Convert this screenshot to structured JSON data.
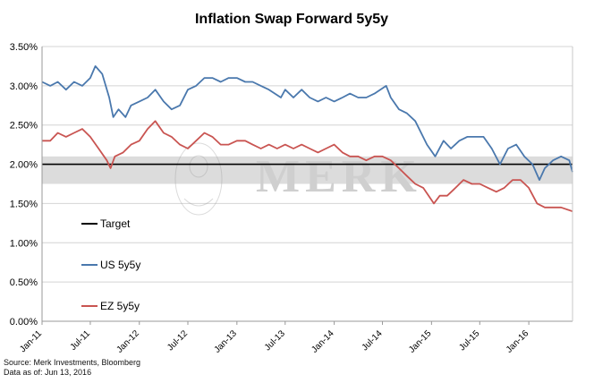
{
  "chart_data": {
    "type": "line",
    "title": "Inflation Swap Forward 5y5y",
    "xlabel": "",
    "ylabel": "",
    "ylim": [
      0,
      3.5
    ],
    "yticks": [
      "0.00%",
      "0.50%",
      "1.00%",
      "1.50%",
      "2.00%",
      "2.50%",
      "3.00%",
      "3.50%"
    ],
    "xticks": [
      "Jan-11",
      "Jul-11",
      "Jan-12",
      "Jul-12",
      "Jan-13",
      "Jul-13",
      "Jan-14",
      "Jul-14",
      "Jan-15",
      "Jul-15",
      "Jan-16"
    ],
    "x_range": [
      "2011-01-01",
      "2016-06-13"
    ],
    "grid": true,
    "legend": "lower-left inside plot",
    "watermark": "MERK",
    "target_band": [
      1.75,
      2.1
    ],
    "series": [
      {
        "name": "Target",
        "color": "#000000",
        "points": [
          [
            "2011-01-01",
            2.0
          ],
          [
            "2016-06-13",
            2.0
          ]
        ]
      },
      {
        "name": "US 5y5y",
        "color": "#4a78ad",
        "points": [
          [
            "2011-01-01",
            3.05
          ],
          [
            "2011-02-01",
            3.0
          ],
          [
            "2011-03-01",
            3.05
          ],
          [
            "2011-04-01",
            2.95
          ],
          [
            "2011-05-01",
            3.05
          ],
          [
            "2011-06-01",
            3.0
          ],
          [
            "2011-07-01",
            3.1
          ],
          [
            "2011-07-20",
            3.25
          ],
          [
            "2011-08-15",
            3.15
          ],
          [
            "2011-09-10",
            2.85
          ],
          [
            "2011-09-25",
            2.6
          ],
          [
            "2011-10-15",
            2.7
          ],
          [
            "2011-11-10",
            2.6
          ],
          [
            "2011-12-01",
            2.75
          ],
          [
            "2012-01-01",
            2.8
          ],
          [
            "2012-02-01",
            2.85
          ],
          [
            "2012-03-01",
            2.95
          ],
          [
            "2012-04-01",
            2.8
          ],
          [
            "2012-05-01",
            2.7
          ],
          [
            "2012-06-01",
            2.75
          ],
          [
            "2012-07-01",
            2.95
          ],
          [
            "2012-08-01",
            3.0
          ],
          [
            "2012-09-01",
            3.1
          ],
          [
            "2012-10-01",
            3.1
          ],
          [
            "2012-11-01",
            3.05
          ],
          [
            "2012-12-01",
            3.1
          ],
          [
            "2013-01-01",
            3.1
          ],
          [
            "2013-02-01",
            3.05
          ],
          [
            "2013-03-01",
            3.05
          ],
          [
            "2013-04-01",
            3.0
          ],
          [
            "2013-05-01",
            2.95
          ],
          [
            "2013-06-15",
            2.85
          ],
          [
            "2013-07-01",
            2.95
          ],
          [
            "2013-08-01",
            2.85
          ],
          [
            "2013-09-01",
            2.95
          ],
          [
            "2013-10-01",
            2.85
          ],
          [
            "2013-11-01",
            2.8
          ],
          [
            "2013-12-01",
            2.85
          ],
          [
            "2014-01-01",
            2.8
          ],
          [
            "2014-02-01",
            2.85
          ],
          [
            "2014-03-01",
            2.9
          ],
          [
            "2014-04-01",
            2.85
          ],
          [
            "2014-05-01",
            2.85
          ],
          [
            "2014-06-01",
            2.9
          ],
          [
            "2014-07-15",
            3.0
          ],
          [
            "2014-08-01",
            2.85
          ],
          [
            "2014-09-01",
            2.7
          ],
          [
            "2014-10-01",
            2.65
          ],
          [
            "2014-11-01",
            2.55
          ],
          [
            "2014-12-15",
            2.25
          ],
          [
            "2015-01-15",
            2.1
          ],
          [
            "2015-02-15",
            2.3
          ],
          [
            "2015-03-15",
            2.2
          ],
          [
            "2015-04-15",
            2.3
          ],
          [
            "2015-05-15",
            2.35
          ],
          [
            "2015-06-15",
            2.35
          ],
          [
            "2015-07-15",
            2.35
          ],
          [
            "2015-08-15",
            2.2
          ],
          [
            "2015-09-15",
            2.0
          ],
          [
            "2015-10-15",
            2.2
          ],
          [
            "2015-11-15",
            2.25
          ],
          [
            "2015-12-15",
            2.1
          ],
          [
            "2016-01-15",
            2.0
          ],
          [
            "2016-02-10",
            1.8
          ],
          [
            "2016-03-01",
            1.95
          ],
          [
            "2016-04-01",
            2.05
          ],
          [
            "2016-05-01",
            2.1
          ],
          [
            "2016-06-01",
            2.05
          ],
          [
            "2016-06-13",
            1.9
          ]
        ]
      },
      {
        "name": "EZ 5y5y",
        "color": "#c95451",
        "points": [
          [
            "2011-01-01",
            2.3
          ],
          [
            "2011-02-01",
            2.3
          ],
          [
            "2011-03-01",
            2.4
          ],
          [
            "2011-04-01",
            2.35
          ],
          [
            "2011-05-01",
            2.4
          ],
          [
            "2011-06-01",
            2.45
          ],
          [
            "2011-07-01",
            2.35
          ],
          [
            "2011-08-01",
            2.2
          ],
          [
            "2011-09-01",
            2.05
          ],
          [
            "2011-09-15",
            1.95
          ],
          [
            "2011-10-01",
            2.1
          ],
          [
            "2011-11-01",
            2.15
          ],
          [
            "2011-12-01",
            2.25
          ],
          [
            "2012-01-01",
            2.3
          ],
          [
            "2012-02-01",
            2.45
          ],
          [
            "2012-03-01",
            2.55
          ],
          [
            "2012-04-01",
            2.4
          ],
          [
            "2012-05-01",
            2.35
          ],
          [
            "2012-06-01",
            2.25
          ],
          [
            "2012-07-01",
            2.2
          ],
          [
            "2012-08-01",
            2.3
          ],
          [
            "2012-09-01",
            2.4
          ],
          [
            "2012-10-01",
            2.35
          ],
          [
            "2012-11-01",
            2.25
          ],
          [
            "2012-12-01",
            2.25
          ],
          [
            "2013-01-01",
            2.3
          ],
          [
            "2013-02-01",
            2.3
          ],
          [
            "2013-03-01",
            2.25
          ],
          [
            "2013-04-01",
            2.2
          ],
          [
            "2013-05-01",
            2.25
          ],
          [
            "2013-06-01",
            2.2
          ],
          [
            "2013-07-01",
            2.25
          ],
          [
            "2013-08-01",
            2.2
          ],
          [
            "2013-09-01",
            2.25
          ],
          [
            "2013-10-01",
            2.2
          ],
          [
            "2013-11-01",
            2.15
          ],
          [
            "2013-12-01",
            2.2
          ],
          [
            "2014-01-01",
            2.25
          ],
          [
            "2014-02-01",
            2.15
          ],
          [
            "2014-03-01",
            2.1
          ],
          [
            "2014-04-01",
            2.1
          ],
          [
            "2014-05-01",
            2.05
          ],
          [
            "2014-06-01",
            2.1
          ],
          [
            "2014-07-01",
            2.1
          ],
          [
            "2014-08-01",
            2.05
          ],
          [
            "2014-09-01",
            1.95
          ],
          [
            "2014-10-01",
            1.85
          ],
          [
            "2014-11-01",
            1.75
          ],
          [
            "2014-12-01",
            1.7
          ],
          [
            "2015-01-10",
            1.5
          ],
          [
            "2015-02-01",
            1.6
          ],
          [
            "2015-03-01",
            1.6
          ],
          [
            "2015-04-01",
            1.7
          ],
          [
            "2015-05-01",
            1.8
          ],
          [
            "2015-06-01",
            1.75
          ],
          [
            "2015-07-01",
            1.75
          ],
          [
            "2015-08-01",
            1.7
          ],
          [
            "2015-09-01",
            1.65
          ],
          [
            "2015-10-01",
            1.7
          ],
          [
            "2015-11-01",
            1.8
          ],
          [
            "2015-12-01",
            1.8
          ],
          [
            "2016-01-01",
            1.7
          ],
          [
            "2016-02-01",
            1.5
          ],
          [
            "2016-03-01",
            1.45
          ],
          [
            "2016-04-01",
            1.45
          ],
          [
            "2016-05-01",
            1.45
          ],
          [
            "2016-06-13",
            1.4
          ]
        ]
      }
    ]
  },
  "source_text": "Source: Merk Investments, Bloomberg",
  "date_text": "Data as of: Jun 13, 2016"
}
